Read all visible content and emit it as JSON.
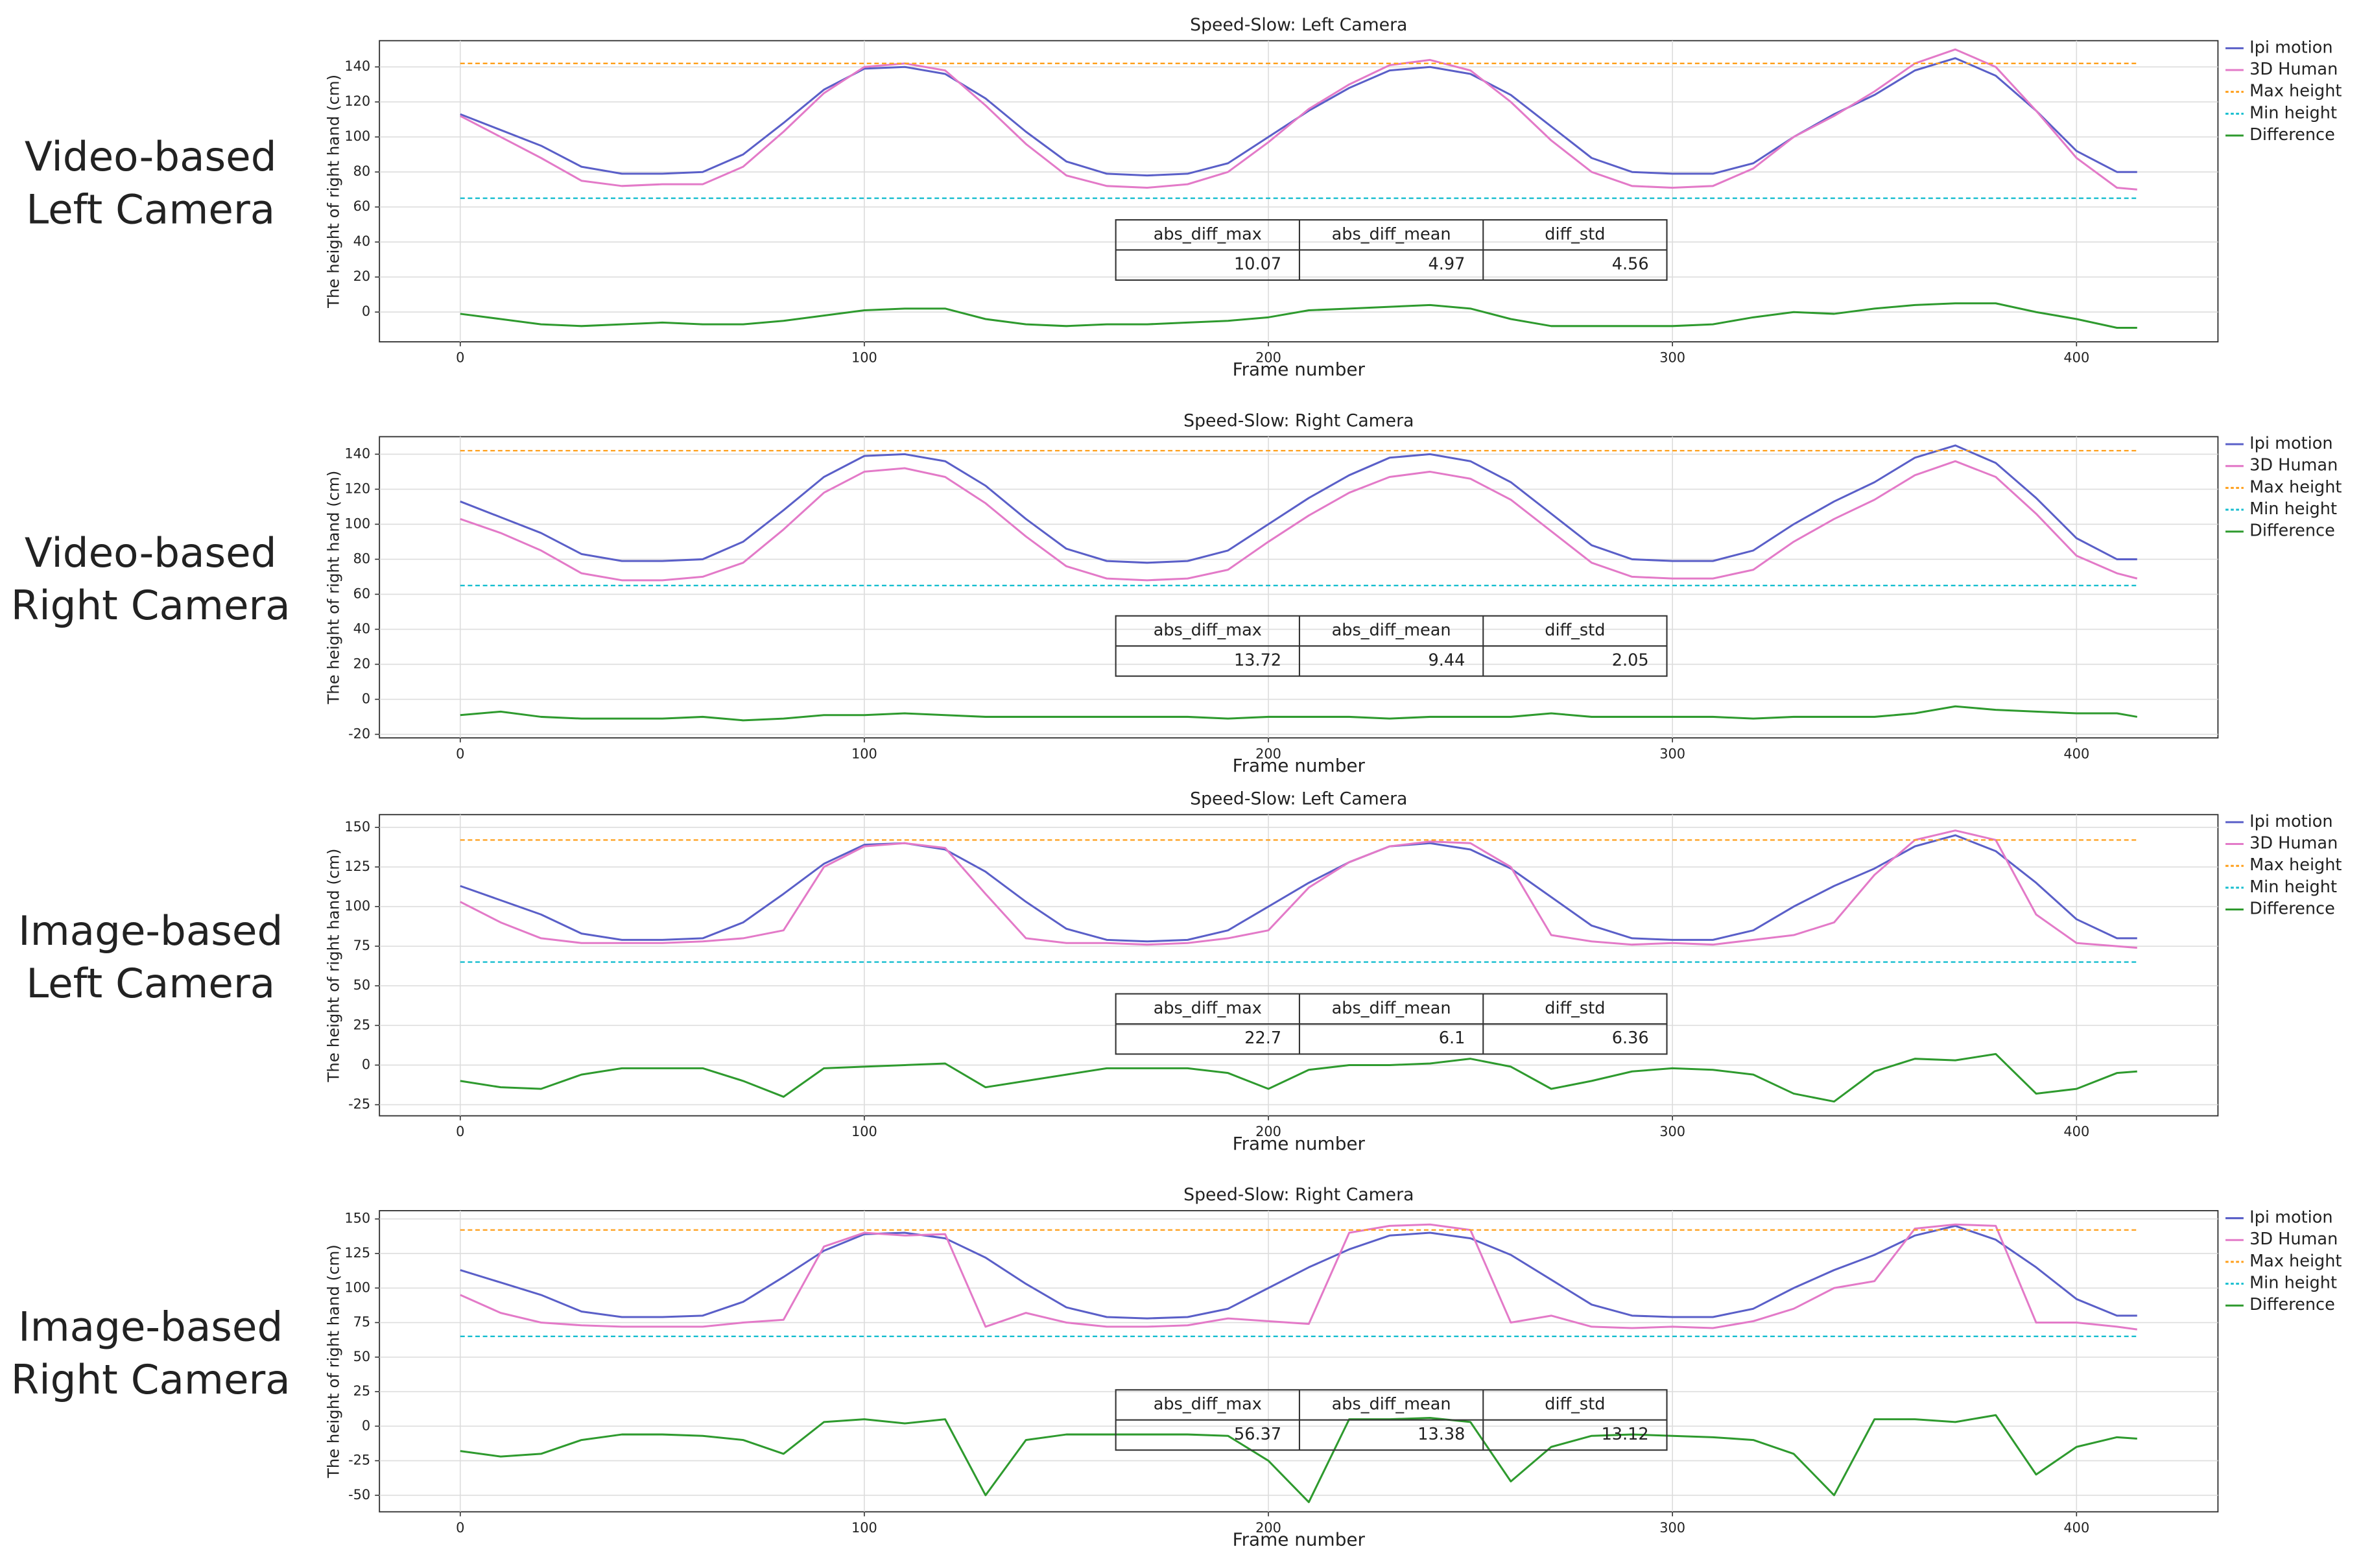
{
  "chart_data": [
    {
      "type": "line",
      "label": [
        "Video-based",
        "Left Camera"
      ],
      "title": "Speed-Slow: Left Camera",
      "xlabel": "Frame number",
      "ylabel": "The height of right hand (cm)",
      "x": [
        0,
        10,
        20,
        30,
        40,
        50,
        60,
        70,
        80,
        90,
        100,
        110,
        120,
        130,
        140,
        150,
        160,
        170,
        180,
        190,
        200,
        210,
        220,
        230,
        240,
        250,
        260,
        270,
        280,
        290,
        300,
        310,
        320,
        330,
        340,
        350,
        360,
        370,
        380,
        390,
        400,
        410,
        415
      ],
      "xlim": [
        -20,
        435
      ],
      "ylim": [
        -17,
        155
      ],
      "xticks": [
        0,
        100,
        200,
        300,
        400
      ],
      "yticks": [
        0,
        20,
        40,
        60,
        80,
        100,
        120,
        140
      ],
      "grid": true,
      "legend": "outside right",
      "series": [
        {
          "name": "Ipi motion",
          "color": "#5a5fc8",
          "values": [
            113,
            104,
            95,
            83,
            79,
            79,
            80,
            90,
            108,
            127,
            139,
            140,
            136,
            122,
            103,
            86,
            79,
            78,
            79,
            85,
            100,
            115,
            128,
            138,
            140,
            136,
            124,
            106,
            88,
            80,
            79,
            79,
            85,
            100,
            113,
            124,
            138,
            145,
            135,
            115,
            92,
            80,
            80
          ]
        },
        {
          "name": "3D Human",
          "color": "#e37ac8",
          "values": [
            112,
            100,
            88,
            75,
            72,
            73,
            73,
            83,
            103,
            125,
            140,
            142,
            138,
            118,
            96,
            78,
            72,
            71,
            73,
            80,
            97,
            116,
            130,
            141,
            144,
            138,
            120,
            98,
            80,
            72,
            71,
            72,
            82,
            100,
            112,
            126,
            142,
            150,
            140,
            115,
            88,
            71,
            70
          ]
        },
        {
          "name": "Max height",
          "color": "#ff9f1a",
          "style": "dashed",
          "x": [
            0,
            415
          ],
          "values": [
            142,
            142
          ]
        },
        {
          "name": "Min height",
          "color": "#17becf",
          "style": "dashed",
          "x": [
            0,
            415
          ],
          "values": [
            65,
            65
          ]
        },
        {
          "name": "Difference",
          "color": "#2e9a2e",
          "values": [
            -1,
            -4,
            -7,
            -8,
            -7,
            -6,
            -7,
            -7,
            -5,
            -2,
            1,
            2,
            2,
            -4,
            -7,
            -8,
            -7,
            -7,
            -6,
            -5,
            -3,
            1,
            2,
            3,
            4,
            2,
            -4,
            -8,
            -8,
            -8,
            -8,
            -7,
            -3,
            0,
            -1,
            2,
            4,
            5,
            5,
            0,
            -4,
            -9,
            -9
          ]
        }
      ],
      "table": {
        "columns": [
          "abs_diff_max",
          "abs_diff_mean",
          "diff_std"
        ],
        "rows": [
          [
            10.07,
            4.97,
            4.56
          ]
        ]
      }
    },
    {
      "type": "line",
      "label": [
        "Video-based",
        "Right Camera"
      ],
      "title": "Speed-Slow: Right Camera",
      "xlabel": "Frame number",
      "ylabel": "The height of right hand (cm)",
      "x": [
        0,
        10,
        20,
        30,
        40,
        50,
        60,
        70,
        80,
        90,
        100,
        110,
        120,
        130,
        140,
        150,
        160,
        170,
        180,
        190,
        200,
        210,
        220,
        230,
        240,
        250,
        260,
        270,
        280,
        290,
        300,
        310,
        320,
        330,
        340,
        350,
        360,
        370,
        380,
        390,
        400,
        410,
        415
      ],
      "xlim": [
        -20,
        435
      ],
      "ylim": [
        -22,
        150
      ],
      "xticks": [
        0,
        100,
        200,
        300,
        400
      ],
      "yticks": [
        -20,
        0,
        20,
        40,
        60,
        80,
        100,
        120,
        140
      ],
      "grid": true,
      "legend": "outside right",
      "series": [
        {
          "name": "Ipi motion",
          "color": "#5a5fc8",
          "values": [
            113,
            104,
            95,
            83,
            79,
            79,
            80,
            90,
            108,
            127,
            139,
            140,
            136,
            122,
            103,
            86,
            79,
            78,
            79,
            85,
            100,
            115,
            128,
            138,
            140,
            136,
            124,
            106,
            88,
            80,
            79,
            79,
            85,
            100,
            113,
            124,
            138,
            145,
            135,
            115,
            92,
            80,
            80
          ]
        },
        {
          "name": "3D Human",
          "color": "#e37ac8",
          "values": [
            103,
            95,
            85,
            72,
            68,
            68,
            70,
            78,
            97,
            118,
            130,
            132,
            127,
            112,
            93,
            76,
            69,
            68,
            69,
            74,
            90,
            105,
            118,
            127,
            130,
            126,
            114,
            96,
            78,
            70,
            69,
            69,
            74,
            90,
            103,
            114,
            128,
            136,
            127,
            106,
            82,
            72,
            69
          ]
        },
        {
          "name": "Max height",
          "color": "#ff9f1a",
          "style": "dashed",
          "x": [
            0,
            415
          ],
          "values": [
            142,
            142
          ]
        },
        {
          "name": "Min height",
          "color": "#17becf",
          "style": "dashed",
          "x": [
            0,
            415
          ],
          "values": [
            65,
            65
          ]
        },
        {
          "name": "Difference",
          "color": "#2e9a2e",
          "values": [
            -9,
            -7,
            -10,
            -11,
            -11,
            -11,
            -10,
            -12,
            -11,
            -9,
            -9,
            -8,
            -9,
            -10,
            -10,
            -10,
            -10,
            -10,
            -10,
            -11,
            -10,
            -10,
            -10,
            -11,
            -10,
            -10,
            -10,
            -8,
            -10,
            -10,
            -10,
            -10,
            -11,
            -10,
            -10,
            -10,
            -8,
            -4,
            -6,
            -7,
            -8,
            -8,
            -10
          ]
        }
      ],
      "table": {
        "columns": [
          "abs_diff_max",
          "abs_diff_mean",
          "diff_std"
        ],
        "rows": [
          [
            13.72,
            9.44,
            2.05
          ]
        ]
      }
    },
    {
      "type": "line",
      "label": [
        "Image-based",
        "Left Camera"
      ],
      "title": "Speed-Slow: Left Camera",
      "xlabel": "Frame number",
      "ylabel": "The height of right hand (cm)",
      "x": [
        0,
        10,
        20,
        30,
        40,
        50,
        60,
        70,
        80,
        90,
        100,
        110,
        120,
        130,
        140,
        150,
        160,
        170,
        180,
        190,
        200,
        210,
        220,
        230,
        240,
        250,
        260,
        270,
        280,
        290,
        300,
        310,
        320,
        330,
        340,
        350,
        360,
        370,
        380,
        390,
        400,
        410,
        415
      ],
      "xlim": [
        -20,
        435
      ],
      "ylim": [
        -32,
        158
      ],
      "xticks": [
        0,
        100,
        200,
        300,
        400
      ],
      "yticks": [
        -25,
        0,
        25,
        50,
        75,
        100,
        125,
        150
      ],
      "grid": true,
      "legend": "outside right",
      "series": [
        {
          "name": "Ipi motion",
          "color": "#5a5fc8",
          "values": [
            113,
            104,
            95,
            83,
            79,
            79,
            80,
            90,
            108,
            127,
            139,
            140,
            136,
            122,
            103,
            86,
            79,
            78,
            79,
            85,
            100,
            115,
            128,
            138,
            140,
            136,
            124,
            106,
            88,
            80,
            79,
            79,
            85,
            100,
            113,
            124,
            138,
            145,
            135,
            115,
            92,
            80,
            80
          ]
        },
        {
          "name": "3D Human",
          "color": "#e37ac8",
          "values": [
            103,
            90,
            80,
            77,
            77,
            77,
            78,
            80,
            85,
            125,
            138,
            140,
            137,
            108,
            80,
            77,
            77,
            76,
            77,
            80,
            85,
            112,
            128,
            138,
            141,
            140,
            125,
            82,
            78,
            76,
            77,
            76,
            79,
            82,
            90,
            120,
            142,
            148,
            142,
            95,
            77,
            75,
            74
          ]
        },
        {
          "name": "Max height",
          "color": "#ff9f1a",
          "style": "dashed",
          "x": [
            0,
            415
          ],
          "values": [
            142,
            142
          ]
        },
        {
          "name": "Min height",
          "color": "#17becf",
          "style": "dashed",
          "x": [
            0,
            415
          ],
          "values": [
            65,
            65
          ]
        },
        {
          "name": "Difference",
          "color": "#2e9a2e",
          "values": [
            -10,
            -14,
            -15,
            -6,
            -2,
            -2,
            -2,
            -10,
            -20,
            -2,
            -1,
            0,
            1,
            -14,
            -10,
            -6,
            -2,
            -2,
            -2,
            -5,
            -15,
            -3,
            0,
            0,
            1,
            4,
            -1,
            -15,
            -10,
            -4,
            -2,
            -3,
            -6,
            -18,
            -23,
            -4,
            4,
            3,
            7,
            -18,
            -15,
            -5,
            -4
          ]
        }
      ],
      "table": {
        "columns": [
          "abs_diff_max",
          "abs_diff_mean",
          "diff_std"
        ],
        "rows": [
          [
            22.7,
            6.1,
            6.36
          ]
        ]
      }
    },
    {
      "type": "line",
      "label": [
        "Image-based",
        "Right Camera"
      ],
      "title": "Speed-Slow: Right Camera",
      "xlabel": "Frame number",
      "ylabel": "The height of right hand (cm)",
      "x": [
        0,
        10,
        20,
        30,
        40,
        50,
        60,
        70,
        80,
        90,
        100,
        110,
        120,
        130,
        140,
        150,
        160,
        170,
        180,
        190,
        200,
        210,
        220,
        230,
        240,
        250,
        260,
        270,
        280,
        290,
        300,
        310,
        320,
        330,
        340,
        350,
        360,
        370,
        380,
        390,
        400,
        410,
        415
      ],
      "xlim": [
        -20,
        435
      ],
      "ylim": [
        -62,
        156
      ],
      "xticks": [
        0,
        100,
        200,
        300,
        400
      ],
      "yticks": [
        -50,
        -25,
        0,
        25,
        50,
        75,
        100,
        125,
        150
      ],
      "grid": true,
      "legend": "outside right",
      "series": [
        {
          "name": "Ipi motion",
          "color": "#5a5fc8",
          "values": [
            113,
            104,
            95,
            83,
            79,
            79,
            80,
            90,
            108,
            127,
            139,
            140,
            136,
            122,
            103,
            86,
            79,
            78,
            79,
            85,
            100,
            115,
            128,
            138,
            140,
            136,
            124,
            106,
            88,
            80,
            79,
            79,
            85,
            100,
            113,
            124,
            138,
            145,
            135,
            115,
            92,
            80,
            80
          ]
        },
        {
          "name": "3D Human",
          "color": "#e37ac8",
          "values": [
            95,
            82,
            75,
            73,
            72,
            72,
            72,
            75,
            77,
            130,
            140,
            138,
            139,
            72,
            82,
            75,
            72,
            72,
            73,
            78,
            76,
            74,
            140,
            145,
            146,
            142,
            75,
            80,
            72,
            71,
            72,
            71,
            76,
            85,
            100,
            105,
            143,
            146,
            145,
            75,
            75,
            72,
            70
          ]
        },
        {
          "name": "Max height",
          "color": "#ff9f1a",
          "style": "dashed",
          "x": [
            0,
            415
          ],
          "values": [
            142,
            142
          ]
        },
        {
          "name": "Min height",
          "color": "#17becf",
          "style": "dashed",
          "x": [
            0,
            415
          ],
          "values": [
            65,
            65
          ]
        },
        {
          "name": "Difference",
          "color": "#2e9a2e",
          "values": [
            -18,
            -22,
            -20,
            -10,
            -6,
            -6,
            -7,
            -10,
            -20,
            3,
            5,
            2,
            5,
            -50,
            -10,
            -6,
            -6,
            -6,
            -6,
            -7,
            -25,
            -55,
            5,
            5,
            6,
            3,
            -40,
            -15,
            -7,
            -6,
            -7,
            -8,
            -10,
            -20,
            -50,
            5,
            5,
            3,
            8,
            -35,
            -15,
            -8,
            -9
          ]
        }
      ],
      "table": {
        "columns": [
          "abs_diff_max",
          "abs_diff_mean",
          "diff_std"
        ],
        "rows": [
          [
            56.37,
            13.38,
            13.12
          ]
        ]
      }
    }
  ]
}
